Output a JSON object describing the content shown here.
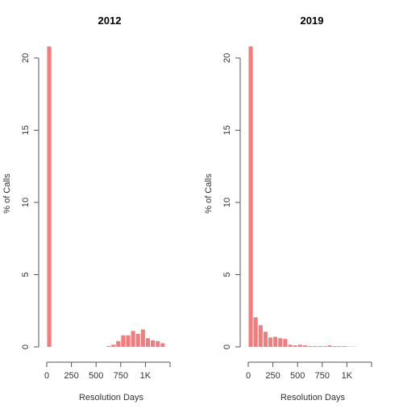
{
  "chart_data": [
    {
      "type": "bar",
      "title": "2012",
      "xlabel": "Resolution Days",
      "ylabel": "% of Calls",
      "xlim": [
        0,
        1250
      ],
      "ylim": [
        0,
        21
      ],
      "bin_width": 50,
      "x_ticks": [
        0,
        250,
        500,
        750,
        1000
      ],
      "x_tick_labels": [
        "0",
        "250",
        "500",
        "750",
        "1K"
      ],
      "y_ticks": [
        0,
        5,
        10,
        15,
        20
      ],
      "y_tick_labels": [
        "0",
        "5",
        "10",
        "15",
        "20"
      ],
      "bar_color": "#f87a7a",
      "bins_start": [
        0,
        50,
        100,
        150,
        200,
        250,
        300,
        350,
        400,
        450,
        500,
        550,
        600,
        650,
        700,
        750,
        800,
        850,
        900,
        950,
        1000,
        1050,
        1100,
        1150
      ],
      "values": [
        20.8,
        0,
        0,
        0,
        0,
        0,
        0,
        0,
        0,
        0,
        0,
        0,
        0.05,
        0.15,
        0.4,
        0.8,
        0.8,
        1.1,
        0.9,
        1.2,
        0.6,
        0.45,
        0.4,
        0.25
      ]
    },
    {
      "type": "bar",
      "title": "2019",
      "xlabel": "Resolution Days",
      "ylabel": "% of Calls",
      "xlim": [
        0,
        1250
      ],
      "ylim": [
        0,
        21
      ],
      "bin_width": 50,
      "x_ticks": [
        0,
        250,
        500,
        750,
        1000
      ],
      "x_tick_labels": [
        "0",
        "250",
        "500",
        "750",
        "1K"
      ],
      "y_ticks": [
        0,
        5,
        10,
        15,
        20
      ],
      "y_tick_labels": [
        "0",
        "5",
        "10",
        "15",
        "20"
      ],
      "bar_color": "#f87a7a",
      "bins_start": [
        0,
        50,
        100,
        150,
        200,
        250,
        300,
        350,
        400,
        450,
        500,
        550,
        600,
        650,
        700,
        750,
        800,
        850,
        900,
        950,
        1000,
        1050
      ],
      "values": [
        20.8,
        2.05,
        1.5,
        1.05,
        0.65,
        0.7,
        0.6,
        0.55,
        0.15,
        0.1,
        0.15,
        0.1,
        0.05,
        0.05,
        0.05,
        0.05,
        0.1,
        0.05,
        0.05,
        0.05,
        0.02,
        0.02
      ]
    }
  ]
}
